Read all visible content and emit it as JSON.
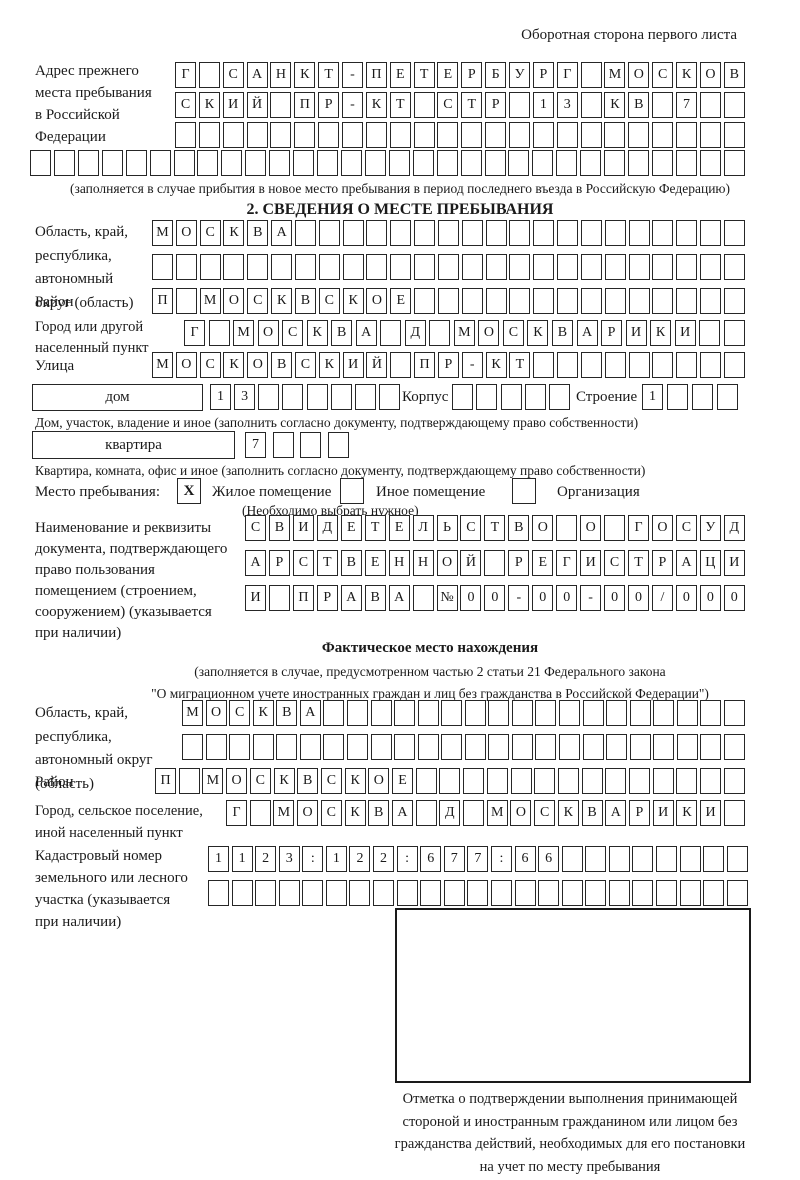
{
  "page": {
    "corner_note": "Оборотная сторона первого листа",
    "section2_title": "2. СВЕДЕНИЯ О МЕСТЕ ПРЕБЫВАНИЯ",
    "fact_title": "Фактическое место нахождения"
  },
  "labels": {
    "prev_address": "Адрес прежнего\nместа пребывания\nв Российской\nФедерации",
    "region1": "Область, край,\nреспублика,\nавтономный\nокруг (область)",
    "district1": "Район",
    "city1": "Город или другой\nнаселенный пункт",
    "street": "Улица",
    "house": "дом",
    "building": "Корпус",
    "structure": "Строение",
    "apartment": "квартира",
    "stay_place": "Место пребывания:",
    "residential": "Жилое помещение",
    "other_premises": "Иное помещение",
    "organization": "Организация",
    "doc_label": "Наименование и реквизиты\nдокумента, подтверждающего\nправо пользования\nпомещением (строением,\nсооружением) (указывается\nпри наличии)",
    "region2": "Область, край,\nреспублика,\nавтономный округ\n(область)",
    "district2": "Район",
    "city2": "Город, сельское поселение,\nиной населенный пункт",
    "cadastre": "Кадастровый номер\nземельного или лесного\nучастка (указывается\nпри наличии)"
  },
  "notes": {
    "prev_address_note": "(заполняется в случае прибытия в новое место пребывания в период последнего въезда в Российскую Федерацию)",
    "house_note": "Дом, участок, владение и иное (заполнить согласно документу, подтверждающему право собственности)",
    "apartment_note": "Квартира, комната, офис и иное (заполнить согласно документу, подтверждающему право собственности)",
    "choose_note": "(Необходимо выбрать нужное)",
    "law_note": "(заполняется в случае, предусмотренном частью 2 статьи 21 Федерального закона\n\"О миграционном учете иностранных граждан и лиц без гражданства в Российской Федерации\")",
    "stamp_note": "Отметка о подтверждении выполнения принимающей\nстороной и иностранным гражданином или лицом без\nгражданства действий, необходимых для его постановки\nна учет по месту пребывания"
  },
  "checkboxes": {
    "residential_checked": "X",
    "other_premises_checked": "",
    "organization_checked": ""
  },
  "grids": {
    "addr_r1": {
      "text": "Г САНКТ-ПЕТЕРБУРГ МОСКОВ",
      "cells": 24
    },
    "addr_r2": {
      "text": "СКИЙ ПР-КТ СТР 13 КВ 7",
      "cells": 24
    },
    "addr_r3": {
      "text": "",
      "cells": 24
    },
    "addr_r4": {
      "text": "",
      "cells": 30
    },
    "oblast1_r1": {
      "text": "МОСКВА",
      "cells": 25
    },
    "oblast1_r2": {
      "text": "",
      "cells": 25
    },
    "raion1": {
      "text": "П МОСКВСКОЕ",
      "cells": 25
    },
    "gorod1": {
      "text": "Г МОСКВА Д МОСКВАРИКИ",
      "cells": 23
    },
    "ulitsa": {
      "text": "МОСКОВСКИЙ ПР-КТ",
      "cells": 25
    },
    "dom_num": {
      "text": "13",
      "cells": 8
    },
    "korpus_num": {
      "text": "",
      "cells": 5
    },
    "stroenie_num": {
      "text": "1",
      "cells": 4
    },
    "kvartira_num": {
      "text": "7",
      "cells": 4
    },
    "doc_r1": {
      "text": "СВИДЕТЕЛЬСТВО О ГОСУД",
      "cells": 21
    },
    "doc_r2": {
      "text": "АРСТВЕННОЙ РЕГИСТРАЦИ",
      "cells": 21
    },
    "doc_r3": {
      "text": "И ПРАВА №00-00-00/000",
      "cells": 21
    },
    "oblast2_r1": {
      "text": "МОСКВА",
      "cells": 24
    },
    "oblast2_r2": {
      "text": "",
      "cells": 24
    },
    "raion2": {
      "text": "П МОСКВСКОЕ",
      "cells": 25
    },
    "gorod2": {
      "text": "Г МОСКВА Д МОСКВАРИКИ",
      "cells": 22
    },
    "kadastr_r1": {
      "text": "1123:122:677:66",
      "cells": 23
    },
    "kadastr_r2": {
      "text": "",
      "cells": 23
    }
  }
}
